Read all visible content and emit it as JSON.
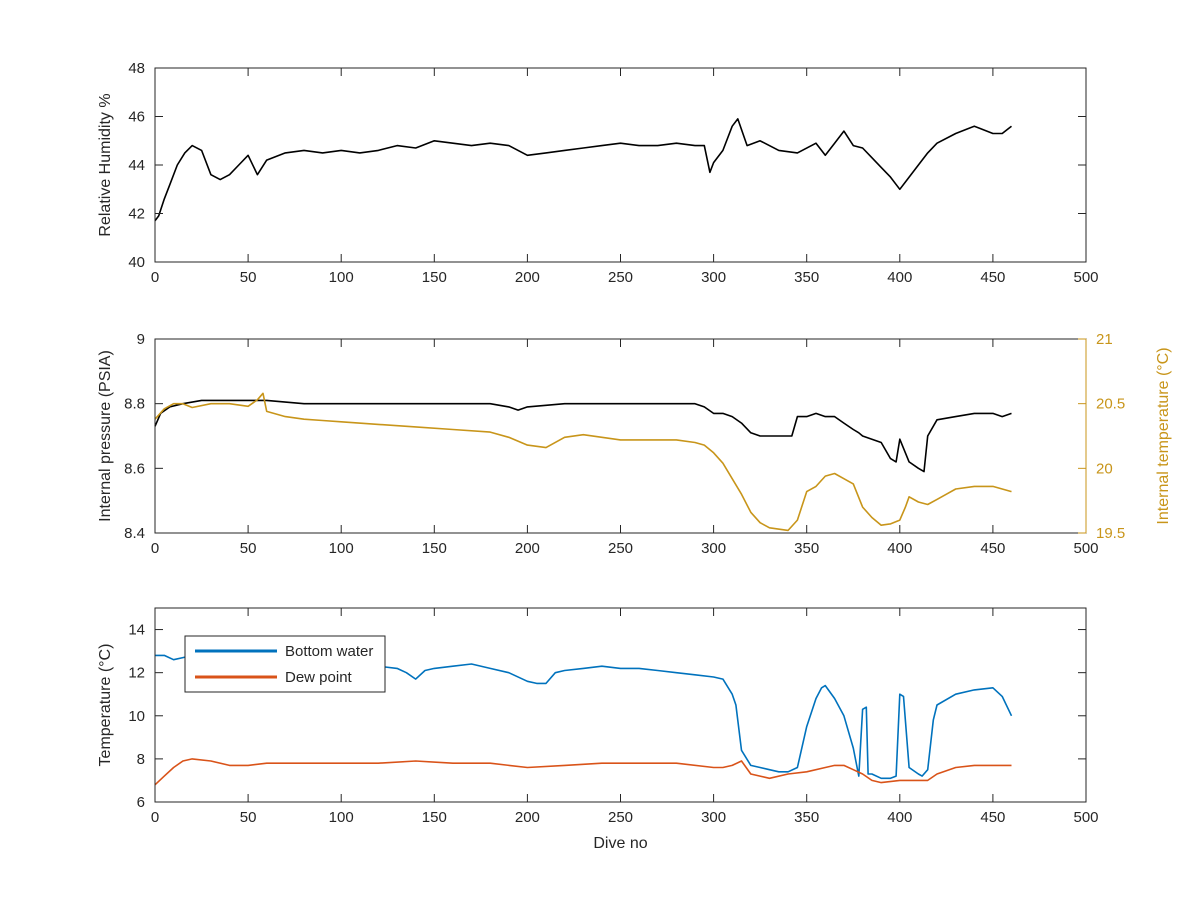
{
  "chart_data": [
    {
      "type": "line",
      "title": "",
      "xlabel": "",
      "ylabel": "Relative Humidity %",
      "xlim": [
        0,
        500
      ],
      "ylim": [
        40,
        48
      ],
      "xticks": [
        0,
        50,
        100,
        150,
        200,
        250,
        300,
        350,
        400,
        450,
        500
      ],
      "yticks": [
        40,
        42,
        44,
        46,
        48
      ],
      "grid": false,
      "series": [
        {
          "color": "#000000",
          "x": [
            0,
            2,
            5,
            8,
            12,
            16,
            20,
            25,
            30,
            35,
            40,
            45,
            50,
            55,
            60,
            70,
            80,
            90,
            100,
            110,
            120,
            130,
            140,
            150,
            160,
            170,
            180,
            190,
            200,
            210,
            220,
            230,
            240,
            250,
            260,
            270,
            280,
            290,
            295,
            298,
            300,
            305,
            310,
            313,
            318,
            325,
            335,
            345,
            355,
            360,
            365,
            370,
            375,
            380,
            385,
            390,
            395,
            400,
            403,
            410,
            415,
            420,
            430,
            440,
            450,
            455,
            460
          ],
          "y": [
            41.7,
            41.9,
            42.6,
            43.2,
            44.0,
            44.5,
            44.8,
            44.6,
            43.6,
            43.4,
            43.6,
            44.0,
            44.4,
            43.6,
            44.2,
            44.5,
            44.6,
            44.5,
            44.6,
            44.5,
            44.6,
            44.8,
            44.7,
            45.0,
            44.9,
            44.8,
            44.9,
            44.8,
            44.4,
            44.5,
            44.6,
            44.7,
            44.8,
            44.9,
            44.8,
            44.8,
            44.9,
            44.8,
            44.8,
            43.7,
            44.1,
            44.6,
            45.6,
            45.9,
            44.8,
            45.0,
            44.6,
            44.5,
            44.9,
            44.4,
            44.9,
            45.4,
            44.8,
            44.7,
            44.3,
            43.9,
            43.5,
            43.0,
            43.3,
            44.0,
            44.5,
            44.9,
            45.3,
            45.6,
            45.3,
            45.3,
            45.6
          ]
        }
      ]
    },
    {
      "type": "line",
      "title": "",
      "xlabel": "",
      "ylabel": "Internal pressure (PSIA)",
      "ylabel_right": "Internal temperature (°C)",
      "xlim": [
        0,
        500
      ],
      "ylim": [
        8.4,
        9.0
      ],
      "ylim_right": [
        19.5,
        21.0
      ],
      "xticks": [
        0,
        50,
        100,
        150,
        200,
        250,
        300,
        350,
        400,
        450,
        500
      ],
      "yticks": [
        8.4,
        8.6,
        8.8,
        9
      ],
      "yticks_right": [
        19.5,
        20,
        20.5,
        21
      ],
      "grid": false,
      "series": [
        {
          "axis": "left",
          "color": "#000000",
          "x": [
            0,
            3,
            8,
            15,
            25,
            40,
            60,
            80,
            100,
            120,
            140,
            160,
            180,
            190,
            195,
            200,
            220,
            240,
            260,
            280,
            290,
            295,
            300,
            305,
            310,
            315,
            320,
            325,
            330,
            340,
            342,
            345,
            350,
            355,
            360,
            365,
            370,
            375,
            378,
            380,
            385,
            390,
            395,
            398,
            400,
            405,
            410,
            413,
            415,
            420,
            430,
            440,
            450,
            455,
            460
          ],
          "y": [
            8.73,
            8.77,
            8.79,
            8.8,
            8.81,
            8.81,
            8.81,
            8.8,
            8.8,
            8.8,
            8.8,
            8.8,
            8.8,
            8.79,
            8.78,
            8.79,
            8.8,
            8.8,
            8.8,
            8.8,
            8.8,
            8.79,
            8.77,
            8.77,
            8.76,
            8.74,
            8.71,
            8.7,
            8.7,
            8.7,
            8.7,
            8.76,
            8.76,
            8.77,
            8.76,
            8.76,
            8.74,
            8.72,
            8.71,
            8.7,
            8.69,
            8.68,
            8.63,
            8.62,
            8.69,
            8.62,
            8.6,
            8.59,
            8.7,
            8.75,
            8.76,
            8.77,
            8.77,
            8.76,
            8.77
          ]
        },
        {
          "axis": "right",
          "color": "#C8951A",
          "x": [
            0,
            5,
            10,
            15,
            20,
            30,
            40,
            50,
            55,
            58,
            60,
            70,
            80,
            90,
            100,
            120,
            140,
            160,
            180,
            190,
            200,
            210,
            220,
            230,
            240,
            250,
            260,
            270,
            280,
            290,
            295,
            300,
            305,
            310,
            315,
            320,
            325,
            330,
            340,
            345,
            350,
            355,
            360,
            365,
            370,
            375,
            380,
            385,
            390,
            395,
            400,
            403,
            405,
            410,
            415,
            420,
            425,
            430,
            440,
            450,
            455,
            460
          ],
          "y": [
            20.38,
            20.46,
            20.5,
            20.5,
            20.47,
            20.5,
            20.5,
            20.48,
            20.53,
            20.58,
            20.44,
            20.4,
            20.38,
            20.37,
            20.36,
            20.34,
            20.32,
            20.3,
            20.28,
            20.24,
            20.18,
            20.16,
            20.24,
            20.26,
            20.24,
            20.22,
            20.22,
            20.22,
            20.22,
            20.2,
            20.18,
            20.12,
            20.04,
            19.92,
            19.8,
            19.66,
            19.58,
            19.54,
            19.52,
            19.6,
            19.82,
            19.86,
            19.94,
            19.96,
            19.92,
            19.88,
            19.7,
            19.62,
            19.56,
            19.57,
            19.6,
            19.7,
            19.78,
            19.74,
            19.72,
            19.76,
            19.8,
            19.84,
            19.86,
            19.86,
            19.84,
            19.82
          ]
        }
      ]
    },
    {
      "type": "line",
      "title": "",
      "xlabel": "Dive no",
      "ylabel": "Temperature (°C)",
      "xlim": [
        0,
        500
      ],
      "ylim": [
        6,
        15
      ],
      "xticks": [
        0,
        50,
        100,
        150,
        200,
        250,
        300,
        350,
        400,
        450,
        500
      ],
      "yticks": [
        6,
        8,
        10,
        12,
        14
      ],
      "grid": false,
      "legend": "top-left",
      "series": [
        {
          "name": "Bottom water",
          "color": "#0072BD",
          "x": [
            0,
            5,
            10,
            15,
            20,
            30,
            40,
            50,
            60,
            70,
            80,
            90,
            100,
            110,
            120,
            130,
            135,
            140,
            145,
            150,
            160,
            170,
            180,
            190,
            200,
            205,
            210,
            215,
            220,
            230,
            240,
            250,
            260,
            270,
            280,
            290,
            300,
            305,
            310,
            312,
            315,
            320,
            325,
            330,
            335,
            340,
            345,
            350,
            355,
            358,
            360,
            365,
            370,
            375,
            378,
            380,
            382,
            383,
            385,
            390,
            395,
            398,
            400,
            402,
            405,
            410,
            412,
            415,
            418,
            420,
            430,
            440,
            450,
            455,
            460
          ],
          "y": [
            12.8,
            12.8,
            12.6,
            12.7,
            12.8,
            12.7,
            12.6,
            12.5,
            12.5,
            12.4,
            12.5,
            12.4,
            12.4,
            12.3,
            12.3,
            12.2,
            12.0,
            11.7,
            12.1,
            12.2,
            12.3,
            12.4,
            12.2,
            12.0,
            11.6,
            11.5,
            11.5,
            12.0,
            12.1,
            12.2,
            12.3,
            12.2,
            12.2,
            12.1,
            12.0,
            11.9,
            11.8,
            11.7,
            11.0,
            10.5,
            8.4,
            7.7,
            7.6,
            7.5,
            7.4,
            7.4,
            7.6,
            9.5,
            10.8,
            11.3,
            11.4,
            10.8,
            10.0,
            8.5,
            7.2,
            10.3,
            10.4,
            7.3,
            7.3,
            7.1,
            7.1,
            7.2,
            11.0,
            10.9,
            7.6,
            7.3,
            7.2,
            7.5,
            9.8,
            10.5,
            11.0,
            11.2,
            11.3,
            10.9,
            10.0
          ]
        },
        {
          "name": "Dew point",
          "color": "#D95319",
          "x": [
            0,
            5,
            10,
            15,
            20,
            30,
            40,
            50,
            60,
            70,
            80,
            100,
            120,
            140,
            160,
            180,
            200,
            220,
            240,
            260,
            280,
            300,
            305,
            310,
            315,
            320,
            330,
            340,
            350,
            360,
            365,
            370,
            375,
            380,
            385,
            390,
            400,
            410,
            415,
            420,
            430,
            440,
            450,
            455,
            460
          ],
          "y": [
            6.8,
            7.2,
            7.6,
            7.9,
            8.0,
            7.9,
            7.7,
            7.7,
            7.8,
            7.8,
            7.8,
            7.8,
            7.8,
            7.9,
            7.8,
            7.8,
            7.6,
            7.7,
            7.8,
            7.8,
            7.8,
            7.6,
            7.6,
            7.7,
            7.9,
            7.3,
            7.1,
            7.3,
            7.4,
            7.6,
            7.7,
            7.7,
            7.5,
            7.3,
            7.0,
            6.9,
            7.0,
            7.0,
            7.0,
            7.3,
            7.6,
            7.7,
            7.7,
            7.7,
            7.7
          ]
        }
      ]
    }
  ]
}
